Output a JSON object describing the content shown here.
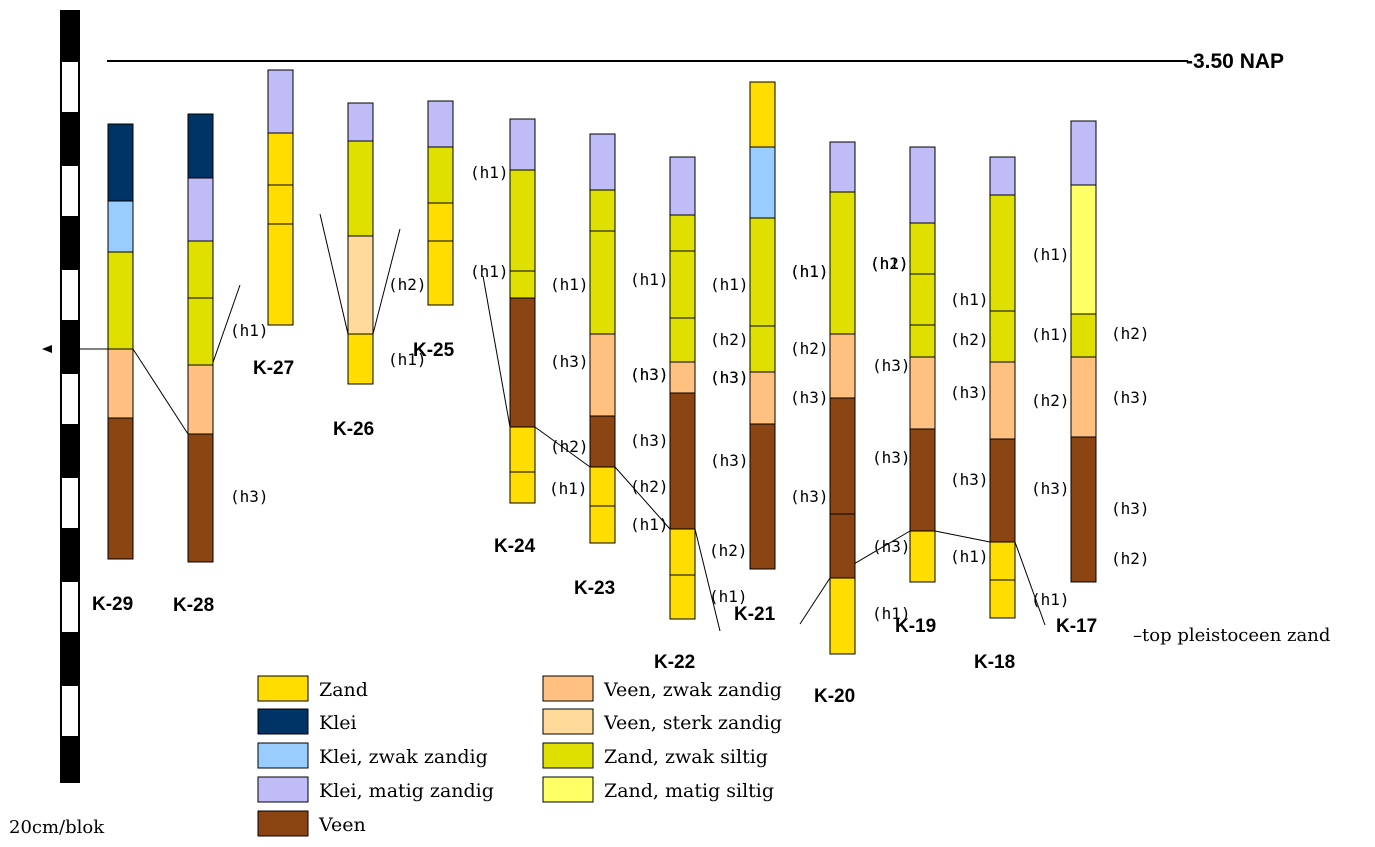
{
  "nap_label": "-3.50 NAP",
  "scale_label": "20cm/blok",
  "pleistocene_label": "–top pleistoceen zand",
  "colors": {
    "Z": "#FFDD00",
    "K": "#003366",
    "KZ": "#99CCFF",
    "KM": "#C0BCF8",
    "V": "#8B4513",
    "VZ": "#FFC080",
    "VS": "#FFDA9A",
    "ZS": "#E0E000",
    "ZM": "#FFFF66"
  },
  "legend": [
    {
      "key": "Z",
      "label": "Zand"
    },
    {
      "key": "K",
      "label": "Klei"
    },
    {
      "key": "KZ",
      "label": "Klei, zwak zandig"
    },
    {
      "key": "KM",
      "label": "Klei, matig zandig"
    },
    {
      "key": "V",
      "label": "Veen"
    },
    {
      "key": "VZ",
      "label": "Veen, zwak zandig"
    },
    {
      "key": "VS",
      "label": "Veen, sterk zandig"
    },
    {
      "key": "ZS",
      "label": "Zand, zwak siltig"
    },
    {
      "key": "ZM",
      "label": "Zand, matig siltig"
    }
  ],
  "cores": [
    {
      "name": "K-29",
      "layers": [
        "K",
        "KZ",
        "ZS",
        "VZ",
        "V"
      ]
    },
    {
      "name": "K-28",
      "layers": [
        "K",
        "KM",
        "ZS",
        "ZS",
        "VZ",
        "V"
      ]
    },
    {
      "name": "K-27",
      "layers": [
        "KM",
        "Z",
        "Z",
        "Z"
      ]
    },
    {
      "name": "K-26",
      "layers": [
        "KM",
        "ZS",
        "VS",
        "Z"
      ]
    },
    {
      "name": "K-25",
      "layers": [
        "KM",
        "ZS",
        "Z",
        "Z"
      ]
    },
    {
      "name": "K-24",
      "layers": [
        "KM",
        "ZS",
        "ZS",
        "V",
        "Z",
        "Z"
      ]
    },
    {
      "name": "K-23",
      "layers": [
        "KM",
        "ZS",
        "ZS",
        "VZ",
        "V",
        "Z",
        "Z"
      ]
    },
    {
      "name": "K-22",
      "layers": [
        "KM",
        "ZS",
        "ZS",
        "ZS",
        "VZ",
        "V",
        "Z",
        "Z"
      ]
    },
    {
      "name": "K-21",
      "layers": [
        "Z",
        "KZ",
        "ZS",
        "ZS",
        "VZ",
        "V"
      ]
    },
    {
      "name": "K-20",
      "layers": [
        "KM",
        "ZS",
        "VZ",
        "V",
        "V",
        "Z"
      ]
    },
    {
      "name": "K-19",
      "layers": [
        "KM",
        "ZS",
        "ZS",
        "ZS",
        "VZ",
        "V",
        "Z"
      ]
    },
    {
      "name": "K-18",
      "layers": [
        "KM",
        "ZS",
        "ZS",
        "VZ",
        "V",
        "Z",
        "Z"
      ]
    },
    {
      "name": "K-17",
      "layers": [
        "KM",
        "ZM",
        "ZS",
        "VZ",
        "V"
      ]
    }
  ],
  "horizon_labels": [
    "(h1)",
    "(h1)",
    "(h1)",
    "(h1)",
    "(h1)",
    "(h1)",
    "(h1)",
    "(h1)",
    "(h1)",
    "(h1)",
    "(h1)",
    "(h1)",
    "(h1)",
    "(h1)",
    "(h1)",
    "(h1)",
    "(h1)",
    "(h1)",
    "(h1)",
    "(h1)",
    "(h2)",
    "(h2)",
    "(h2)",
    "(h2)",
    "(h2)",
    "(h2)",
    "(h2)",
    "(h2)",
    "(h2)",
    "(h2)",
    "(h2)",
    "(h3)",
    "(h3)",
    "(h3)",
    "(h3)",
    "(h3)",
    "(h3)",
    "(h3)",
    "(h3)",
    "(h3)",
    "(h3)",
    "(h3)",
    "(h3)",
    "(h3)",
    "(h3)",
    "(h3)",
    "(h3)",
    "(h3)",
    "(h3)"
  ]
}
